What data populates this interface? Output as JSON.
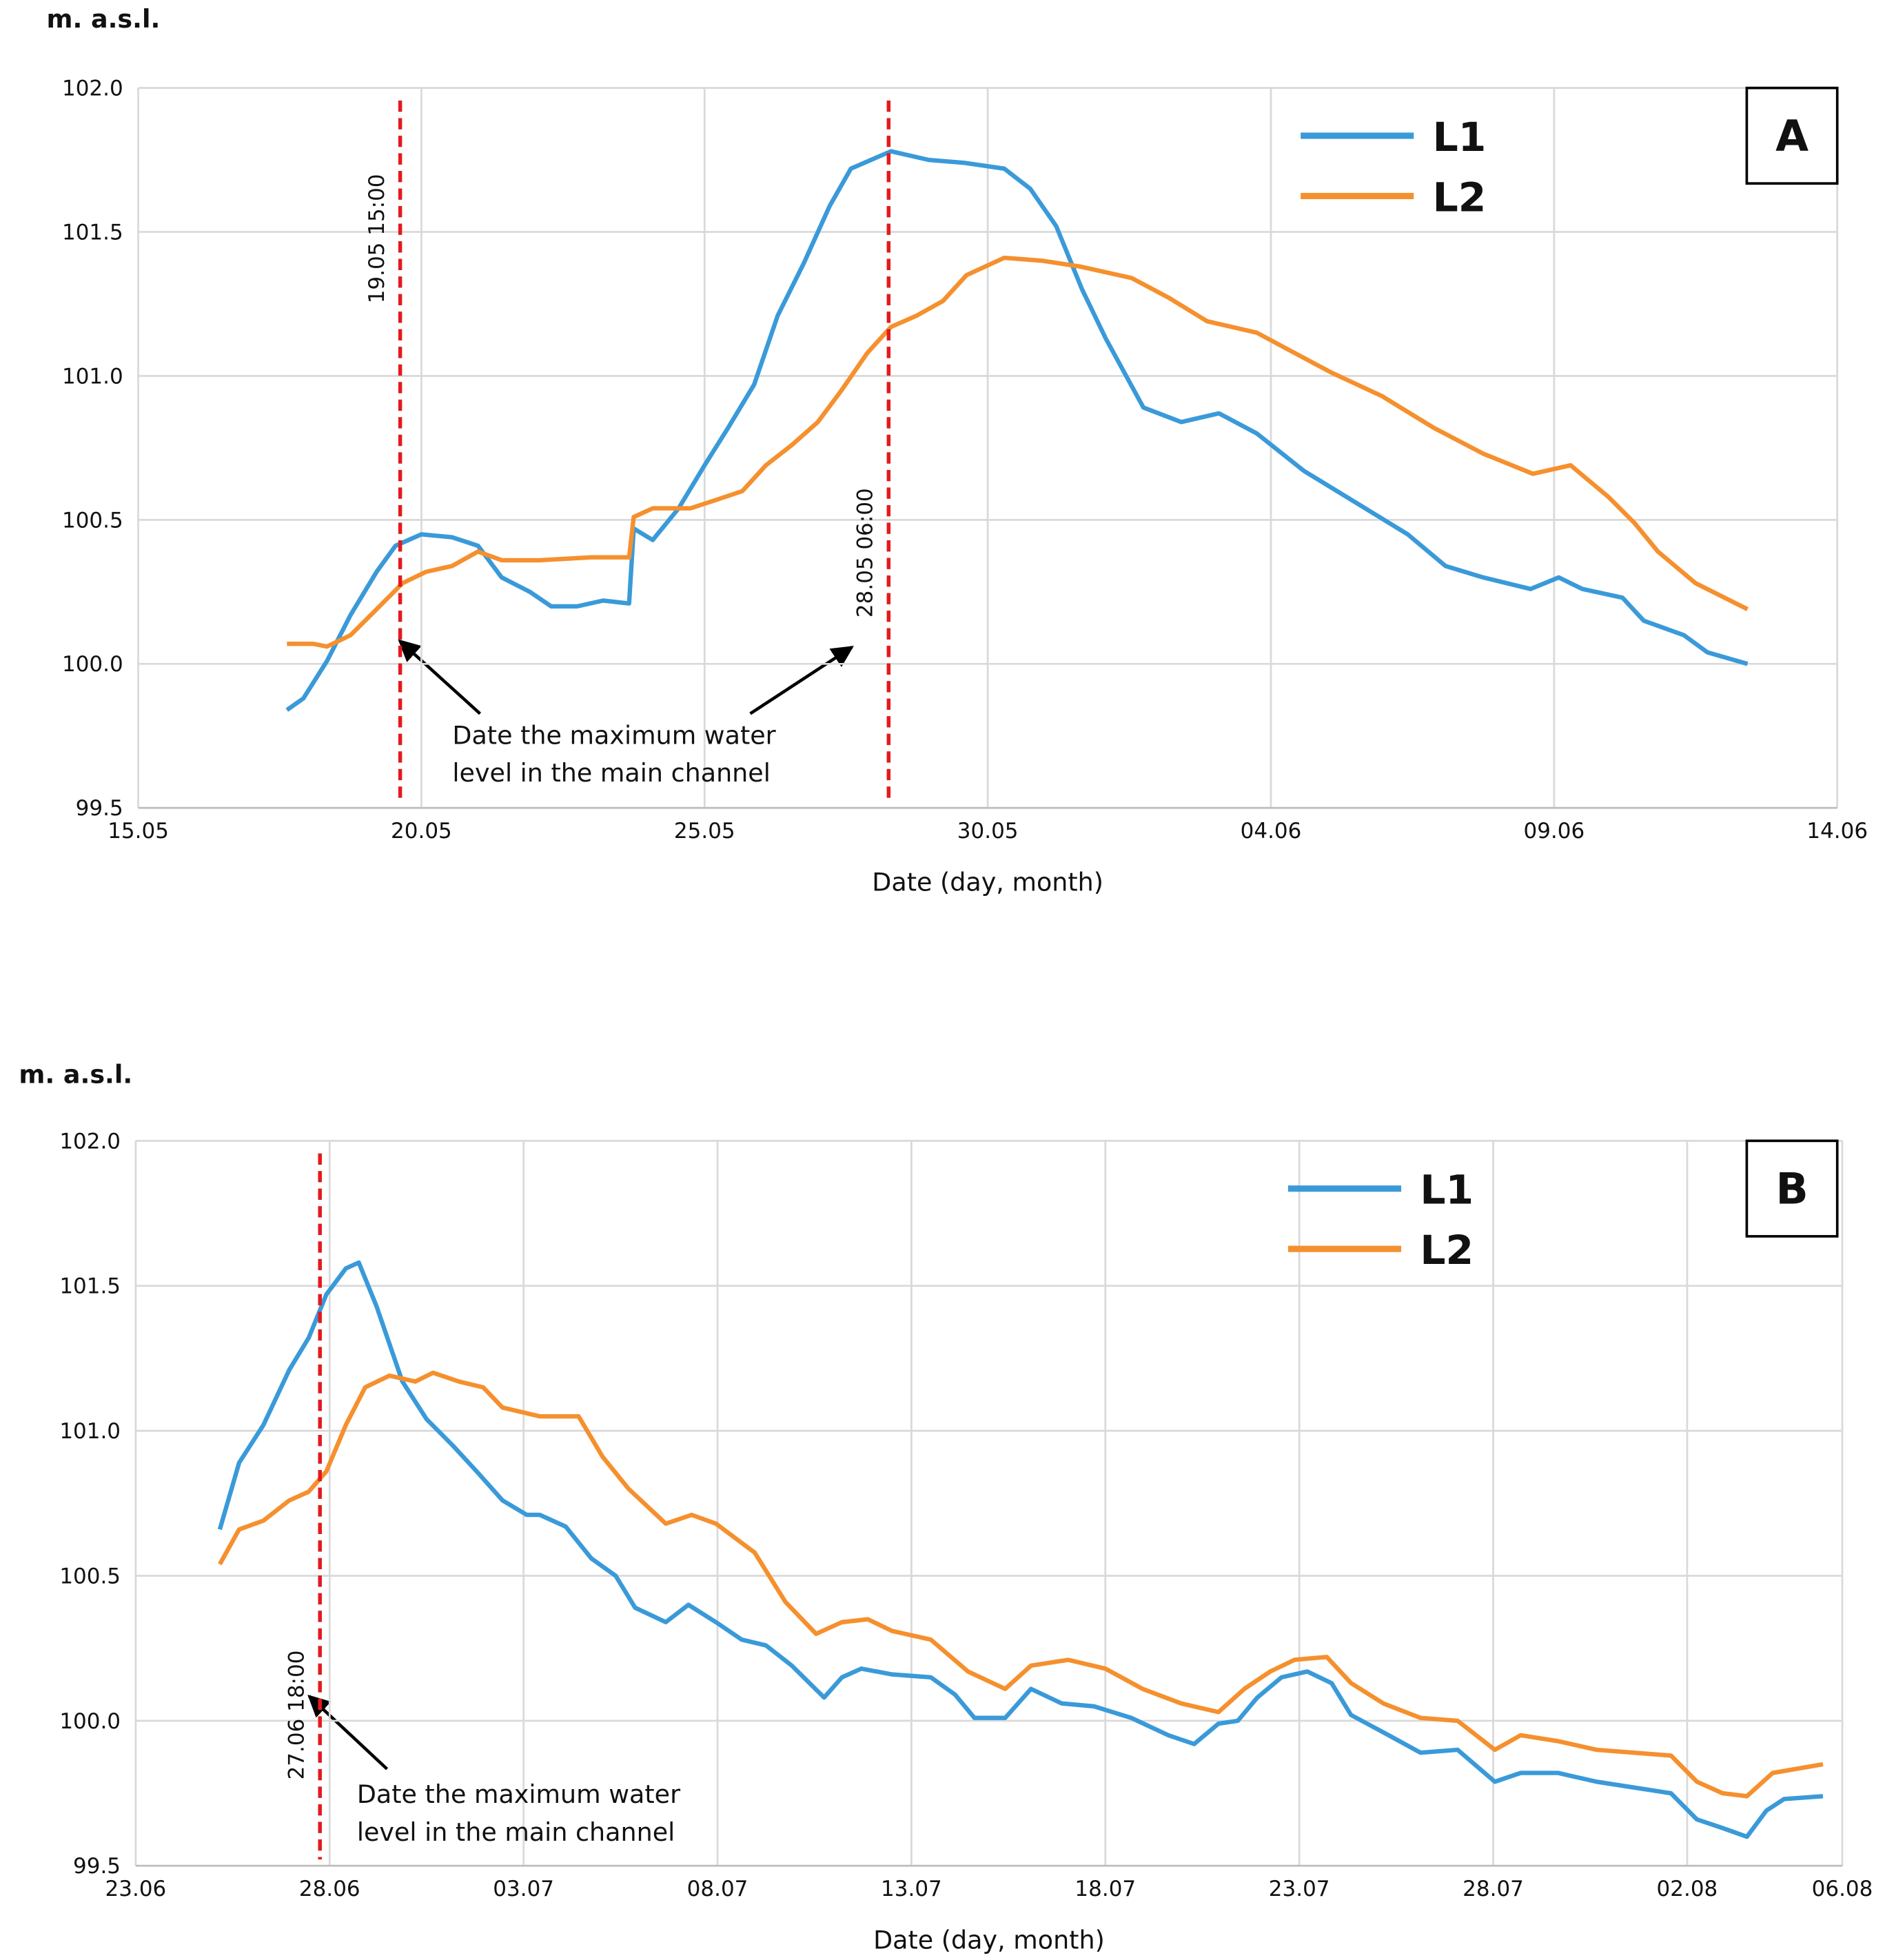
{
  "chart_data": [
    {
      "type": "line",
      "panel": "A",
      "ylabel": "m. a.s.l.",
      "xlabel": "Date (day, month)",
      "xlim": [
        "15.05",
        "14.06"
      ],
      "xticks": [
        "15.05",
        "20.05",
        "25.05",
        "30.05",
        "04.06",
        "09.06",
        "14.06"
      ],
      "ylim": [
        99.5,
        102
      ],
      "yticks": [
        99.5,
        {
          "value": 100,
          "label": "100.0"
        },
        100.5,
        {
          "value": 101,
          "label": "101.0"
        },
        101.5,
        {
          "value": 102,
          "label": "102.0"
        }
      ],
      "grid": true,
      "legend": "upper right",
      "vlines": [
        "19.05 15:00",
        "28.05 06:00"
      ],
      "annotation": [
        "Date the maximum water",
        "level in the main channel"
      ],
      "series": [
        {
          "name": "L1",
          "color": "#3a9ad9",
          "x": [
            "17.05 15:00",
            "17.05 22:00",
            "18.05 08:00",
            "18.05 18:00",
            "19.05 05:00",
            "19.05 13:00",
            "20.05 00:00",
            "20.05 13:00",
            "21.05 00:00",
            "21.05 10:00",
            "21.05 22:00",
            "22.05 07:00",
            "22.05 18:00",
            "23.05 05:00",
            "23.05 16:00",
            "23.05 18:00",
            "24.05 02:00",
            "24.05 13:00",
            "25.05 00:00",
            "25.05 10:00",
            "25.05 21:00",
            "26.05 07:00",
            "26.05 18:00",
            "27.05 05:00",
            "27.05 14:00",
            "28.05 07:00",
            "28.05 23:00",
            "29.05 14:00",
            "30.05 07:00",
            "30.05 18:00",
            "31.05 05:00",
            "31.05 16:00",
            "01.06 02:00",
            "01.06 18:00",
            "02.06 10:00",
            "03.06 02:00",
            "03.06 18:00",
            "04.06 14:00",
            "05.06 12:00",
            "06.06 10:00",
            "07.06 02:00",
            "07.06 18:00",
            "08.06 14:00",
            "09.06 02:00",
            "09.06 12:00",
            "10.06 05:00",
            "10.06 14:00",
            "11.06 07:00",
            "11.06 17:00",
            "12.06 10:00"
          ],
          "values": [
            99.84,
            99.88,
            100.01,
            100.17,
            100.32,
            100.41,
            100.45,
            100.44,
            100.41,
            100.3,
            100.25,
            100.2,
            100.2,
            100.22,
            100.21,
            100.47,
            100.43,
            100.54,
            100.69,
            100.82,
            100.97,
            101.21,
            101.39,
            101.59,
            101.72,
            101.78,
            101.75,
            101.74,
            101.72,
            101.65,
            101.52,
            101.3,
            101.13,
            100.89,
            100.84,
            100.87,
            100.8,
            100.67,
            100.56,
            100.45,
            100.34,
            100.3,
            100.26,
            100.3,
            100.26,
            100.23,
            100.15,
            100.1,
            100.04,
            100.0
          ]
        },
        {
          "name": "L2",
          "color": "#f5902e",
          "x": [
            "17.05 15:00",
            "18.05 02:00",
            "18.05 08:00",
            "18.05 18:00",
            "19.05 05:00",
            "19.05 16:00",
            "20.05 02:00",
            "20.05 13:00",
            "21.05 00:00",
            "21.05 10:00",
            "22.05 02:00",
            "23.05 00:00",
            "23.05 16:00",
            "23.05 18:00",
            "24.05 02:00",
            "24.05 18:00",
            "25.05 05:00",
            "25.05 16:00",
            "26.05 02:00",
            "26.05 13:00",
            "27.05 00:00",
            "27.05 10:00",
            "27.05 21:00",
            "28.05 07:00",
            "28.05 18:00",
            "29.05 05:00",
            "29.05 15:00",
            "30.05 07:00",
            "30.05 23:00",
            "31.05 15:00",
            "01.06 13:00",
            "02.06 05:00",
            "02.06 21:00",
            "03.06 18:00",
            "04.06 10:00",
            "05.06 02:00",
            "05.06 23:00",
            "06.06 21:00",
            "07.06 18:00",
            "08.06 15:00",
            "09.06 07:00",
            "09.06 23:00",
            "10.06 10:00",
            "10.06 20:00",
            "11.06 12:00",
            "12.06 10:00"
          ],
          "values": [
            100.07,
            100.07,
            100.06,
            100.1,
            100.19,
            100.28,
            100.32,
            100.34,
            100.39,
            100.36,
            100.36,
            100.37,
            100.37,
            100.51,
            100.54,
            100.54,
            100.57,
            100.6,
            100.69,
            100.76,
            100.84,
            100.95,
            101.08,
            101.17,
            101.21,
            101.26,
            101.35,
            101.41,
            101.4,
            101.38,
            101.34,
            101.27,
            101.19,
            101.15,
            101.08,
            101.01,
            100.93,
            100.82,
            100.73,
            100.66,
            100.69,
            100.58,
            100.49,
            100.39,
            100.28,
            100.19
          ]
        }
      ]
    },
    {
      "type": "line",
      "panel": "B",
      "ylabel": "m. a.s.l.",
      "xlabel": "Date (day, month)",
      "xlim": [
        "23.06",
        "06.08"
      ],
      "xticks": [
        "23.06",
        "28.06",
        "03.07",
        "08.07",
        "13.07",
        "18.07",
        "23.07",
        "28.07",
        "02.08",
        "06.08"
      ],
      "ylim": [
        99.5,
        102
      ],
      "yticks": [
        99.5,
        {
          "value": 100,
          "label": "100.0"
        },
        100.5,
        {
          "value": 101,
          "label": "101.0"
        },
        101.5,
        {
          "value": 102,
          "label": "102.0"
        }
      ],
      "grid": true,
      "legend": "upper right",
      "vlines": [
        "27.06 18:00"
      ],
      "annotation": [
        "Date the maximum water",
        "level in the main channel"
      ],
      "series": [
        {
          "name": "L1",
          "color": "#3a9ad9",
          "x": [
            "25.06 04:00",
            "25.06 16:00",
            "26.06 07:00",
            "26.06 23:00",
            "27.06 11:00",
            "27.06 22:00",
            "28.06 10:00",
            "28.06 18:00",
            "29.06 05:00",
            "29.06 21:00",
            "30.06 12:00",
            "01.07 04:00",
            "01.07 19:00",
            "02.07 11:00",
            "03.07 02:00",
            "03.07 10:00",
            "04.07 02:00",
            "04.07 18:00",
            "05.07 09:00",
            "05.07 21:00",
            "06.07 16:00",
            "07.07 06:00",
            "07.07 23:00",
            "08.07 15:00",
            "09.07 06:00",
            "09.07 22:00",
            "10.07 18:00",
            "11.07 05:00",
            "11.07 17:00",
            "12.07 12:00",
            "13.07 12:00",
            "14.07 03:00",
            "14.07 15:00",
            "15.07 10:00",
            "16.07 02:00",
            "16.07 21:00",
            "17.07 17:00",
            "18.07 16:00",
            "19.07 15:00",
            "20.07 07:00",
            "20.07 22:00",
            "21.07 10:00",
            "21.07 22:00",
            "22.07 13:00",
            "23.07 05:00",
            "23.07 20:00",
            "24.07 08:00",
            "25.07 04:00",
            "26.07 03:00",
            "27.07 02:00",
            "28.07 01:00",
            "28.07 17:00",
            "29.07 16:00",
            "30.07 16:00",
            "31.07 15:00",
            "01.08 14:00",
            "02.08 06:00",
            "02.08 22:00",
            "03.08 13:00",
            "04.08 01:00",
            "04.08 12:00",
            "05.08 12:00"
          ],
          "values": [
            100.66,
            100.89,
            101.02,
            101.21,
            101.32,
            101.47,
            101.56,
            101.58,
            101.43,
            101.17,
            101.04,
            100.95,
            100.86,
            100.76,
            100.71,
            100.71,
            100.67,
            100.56,
            100.5,
            100.39,
            100.34,
            100.4,
            100.34,
            100.28,
            100.26,
            100.19,
            100.08,
            100.15,
            100.18,
            100.16,
            100.15,
            100.09,
            100.01,
            100.01,
            100.11,
            100.06,
            100.05,
            100.01,
            99.95,
            99.92,
            99.99,
            100.0,
            100.08,
            100.15,
            100.17,
            100.13,
            100.02,
            99.96,
            99.89,
            99.9,
            99.79,
            99.82,
            99.82,
            99.79,
            99.77,
            99.75,
            99.66,
            99.63,
            99.6,
            99.69,
            99.73,
            99.74
          ]
        },
        {
          "name": "L2",
          "color": "#f5902e",
          "x": [
            "25.06 04:00",
            "25.06 16:00",
            "26.06 07:00",
            "26.06 23:00",
            "27.06 11:00",
            "27.06 22:00",
            "28.06 10:00",
            "28.06 22:00",
            "29.06 13:00",
            "30.06 05:00",
            "30.06 16:00",
            "01.07 08:00",
            "01.07 23:00",
            "02.07 11:00",
            "03.07 10:00",
            "04.07 10:00",
            "05.07 01:00",
            "05.07 17:00",
            "06.07 16:00",
            "07.07 08:00",
            "07.07 23:00",
            "08.07 23:00",
            "09.07 18:00",
            "10.07 13:00",
            "11.07 05:00",
            "11.07 21:00",
            "12.07 12:00",
            "13.07 12:00",
            "14.07 11:00",
            "15.07 10:00",
            "16.07 02:00",
            "17.07 01:00",
            "18.07 00:00",
            "18.07 23:00",
            "19.07 23:00",
            "20.07 22:00",
            "21.07 14:00",
            "22.07 06:00",
            "22.07 21:00",
            "23.07 17:00",
            "24.07 08:00",
            "25.07 04:00",
            "26.07 03:00",
            "27.07 02:00",
            "28.07 01:00",
            "28.07 17:00",
            "29.07 16:00",
            "30.07 16:00",
            "31.07 15:00",
            "01.08 14:00",
            "02.08 06:00",
            "02.08 22:00",
            "03.08 13:00",
            "04.08 05:00",
            "05.08 12:00"
          ],
          "values": [
            100.54,
            100.66,
            100.69,
            100.76,
            100.79,
            100.86,
            101.02,
            101.15,
            101.19,
            101.17,
            101.2,
            101.17,
            101.15,
            101.08,
            101.05,
            101.05,
            100.91,
            100.8,
            100.68,
            100.71,
            100.68,
            100.58,
            100.41,
            100.3,
            100.34,
            100.35,
            100.31,
            100.28,
            100.17,
            100.11,
            100.19,
            100.21,
            100.18,
            100.11,
            100.06,
            100.03,
            100.11,
            100.17,
            100.21,
            100.22,
            100.13,
            100.06,
            100.01,
            100.0,
            99.9,
            99.95,
            99.93,
            99.9,
            99.89,
            99.88,
            99.79,
            99.75,
            99.74,
            99.82,
            99.85
          ]
        }
      ]
    }
  ]
}
